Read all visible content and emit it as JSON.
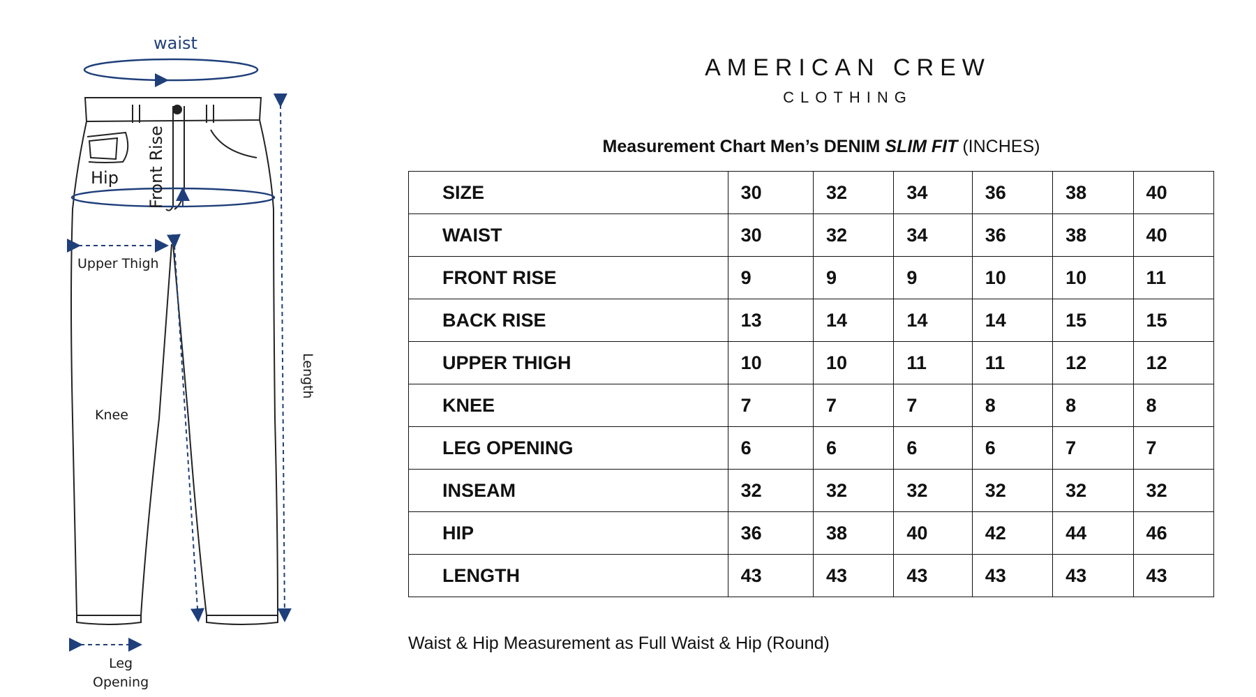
{
  "diagram": {
    "labels": {
      "waist": "waist",
      "hip": "Hip",
      "front_rise": "Front Rise",
      "upper_thigh": "Upper Thigh",
      "knee": "Knee",
      "length": "Length",
      "leg_opening": "Leg\nOpening"
    },
    "arrow_color": "#1f3f7a"
  },
  "brand": {
    "name": "AMERICAN CREW",
    "subtitle": "CLOTHING"
  },
  "chart": {
    "title_prefix": "Measurement Chart Men’s DENIM ",
    "title_emphasis": "SLIM FIT",
    "title_suffix": " (INCHES)",
    "rows": [
      {
        "label": "SIZE",
        "values": [
          "30",
          "32",
          "34",
          "36",
          "38",
          "40"
        ]
      },
      {
        "label": "WAIST",
        "values": [
          "30",
          "32",
          "34",
          "36",
          "38",
          "40"
        ]
      },
      {
        "label": "FRONT RISE",
        "values": [
          "9",
          "9",
          "9",
          "10",
          "10",
          "11"
        ]
      },
      {
        "label": "BACK RISE",
        "values": [
          "13",
          "14",
          "14",
          "14",
          "15",
          "15"
        ]
      },
      {
        "label": "UPPER THIGH",
        "values": [
          "10",
          "10",
          "11",
          "11",
          "12",
          "12"
        ]
      },
      {
        "label": "KNEE",
        "values": [
          "7",
          "7",
          "7",
          "8",
          "8",
          "8"
        ]
      },
      {
        "label": "LEG OPENING",
        "values": [
          "6",
          "6",
          "6",
          "6",
          "7",
          "7"
        ]
      },
      {
        "label": "INSEAM",
        "values": [
          "32",
          "32",
          "32",
          "32",
          "32",
          "32"
        ]
      },
      {
        "label": "HIP",
        "values": [
          "36",
          "38",
          "40",
          "42",
          "44",
          "46"
        ]
      },
      {
        "label": "LENGTH",
        "values": [
          "43",
          "43",
          "43",
          "43",
          "43",
          "43"
        ]
      }
    ],
    "footnote": "Waist & Hip Measurement as Full Waist & Hip (Round)"
  }
}
